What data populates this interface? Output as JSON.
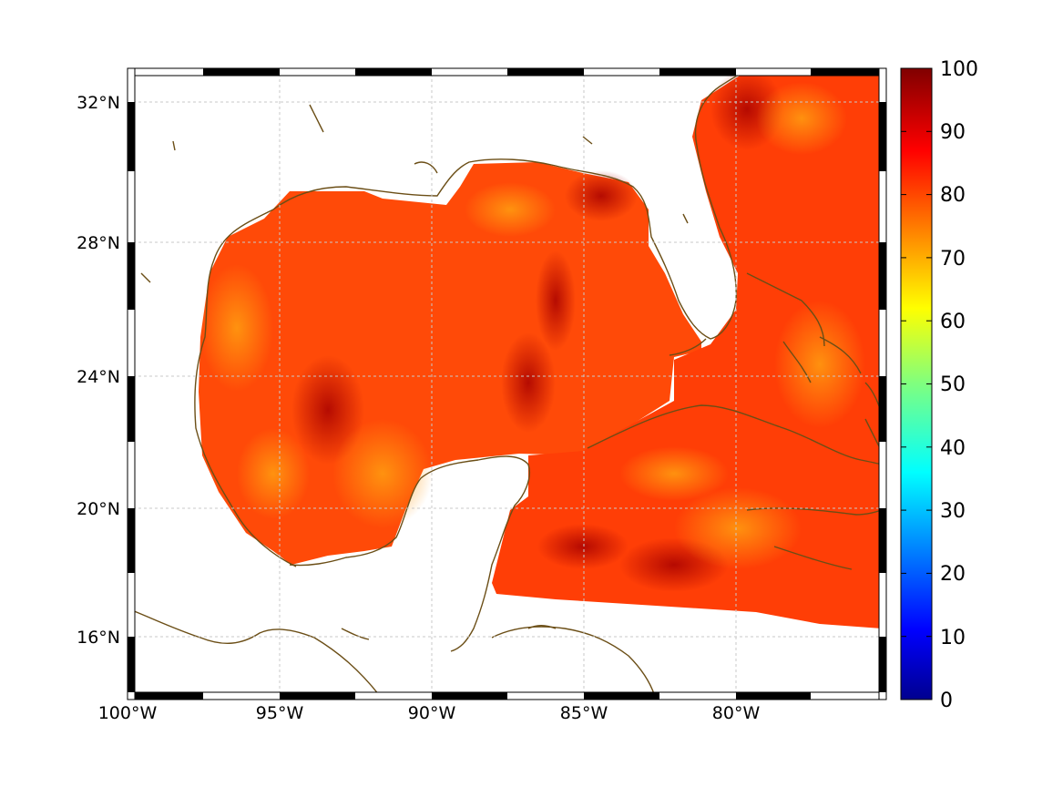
{
  "map": {
    "type": "heatmap",
    "region": "Gulf of Mexico / Caribbean",
    "lon_range": [
      -100,
      -75
    ],
    "lat_range": [
      14,
      33
    ],
    "x_ticks": [
      "100°W",
      "95°W",
      "90°W",
      "85°W",
      "80°W"
    ],
    "y_ticks": [
      "32°N",
      "28°N",
      "24°N",
      "20°N",
      "16°N"
    ],
    "grid": true,
    "frame": "black-and-white dashed border",
    "coastline_color": "#6b4e16",
    "colorbar": {
      "position": "right",
      "colormap": "jet",
      "range": [
        0,
        100
      ],
      "tick_labels": [
        "100",
        "90",
        "80",
        "70",
        "60",
        "50",
        "40",
        "30",
        "20",
        "10",
        "0"
      ]
    },
    "field_description": "values mostly 75-95 over ocean; land and Mexico interior masked white"
  },
  "chart_data": {
    "type": "heatmap",
    "colorbar_range": [
      0,
      100
    ],
    "xlabel": "",
    "ylabel": "",
    "x_ticks": [
      "100°W",
      "95°W",
      "90°W",
      "85°W",
      "80°W"
    ],
    "y_ticks": [
      "32°N",
      "28°N",
      "24°N",
      "20°N",
      "16°N"
    ]
  }
}
